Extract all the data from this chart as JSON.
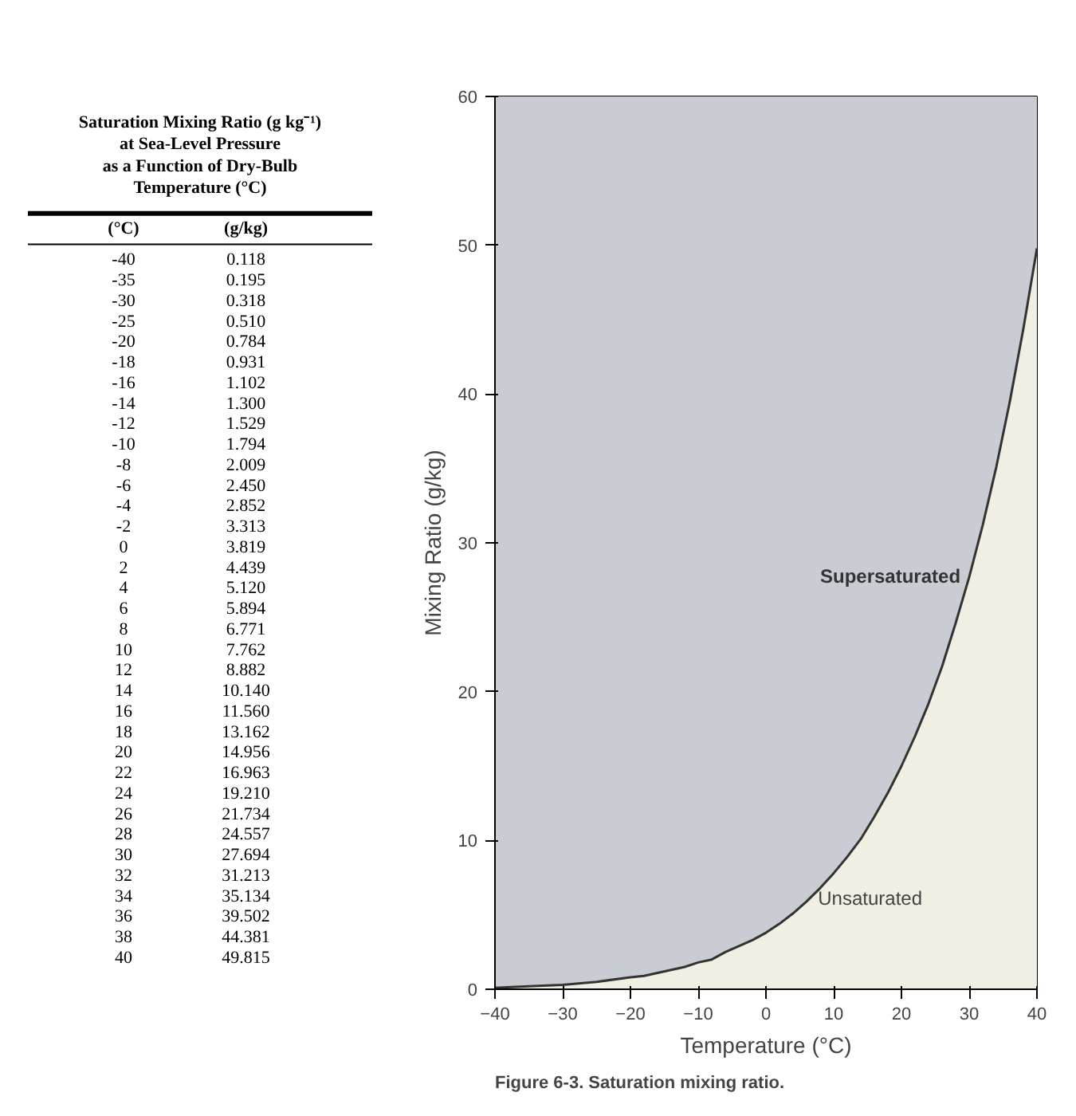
{
  "chart_data": [
    {
      "type": "heatmap",
      "title": "Saturation Mixing Ratio (g kg⁻¹)\nat Sea-Level Pressure\nas a Function of Dry-Bulb\nTemperature (°C)",
      "ylabel": "(°C)",
      "categories": [
        "(g/kg)"
      ],
      "y_categories": [
        "-40",
        "-35",
        "-30",
        "-25",
        "-20",
        "-18",
        "-16",
        "-14",
        "-12",
        "-10",
        "-8",
        "-6",
        "-4",
        "-2",
        "0",
        "2",
        "4",
        "6",
        "8",
        "10",
        "12",
        "14",
        "16",
        "18",
        "20",
        "22",
        "24",
        "26",
        "28",
        "30",
        "32",
        "34",
        "36",
        "38",
        "40"
      ],
      "cells": [
        [
          0.118
        ],
        [
          0.195
        ],
        [
          0.318
        ],
        [
          0.51
        ],
        [
          0.784
        ],
        [
          0.931
        ],
        [
          1.102
        ],
        [
          1.3
        ],
        [
          1.529
        ],
        [
          1.794
        ],
        [
          2.009
        ],
        [
          2.45
        ],
        [
          2.852
        ],
        [
          3.313
        ],
        [
          3.819
        ],
        [
          4.439
        ],
        [
          5.12
        ],
        [
          5.894
        ],
        [
          6.771
        ],
        [
          7.762
        ],
        [
          8.882
        ],
        [
          10.14
        ],
        [
          11.56
        ],
        [
          13.162
        ],
        [
          14.956
        ],
        [
          16.963
        ],
        [
          19.21
        ],
        [
          21.734
        ],
        [
          24.557
        ],
        [
          27.694
        ],
        [
          31.213
        ],
        [
          35.134
        ],
        [
          39.502
        ],
        [
          44.381
        ],
        [
          49.815
        ]
      ],
      "cell_labels": [
        [
          "0.118"
        ],
        [
          "0.195"
        ],
        [
          "0.318"
        ],
        [
          "0.510"
        ],
        [
          "0.784"
        ],
        [
          "0.931"
        ],
        [
          "1.102"
        ],
        [
          "1.300"
        ],
        [
          "1.529"
        ],
        [
          "1.794"
        ],
        [
          "2.009"
        ],
        [
          "2.450"
        ],
        [
          "2.852"
        ],
        [
          "3.313"
        ],
        [
          "3.819"
        ],
        [
          "4.439"
        ],
        [
          "5.120"
        ],
        [
          "5.894"
        ],
        [
          "6.771"
        ],
        [
          "7.762"
        ],
        [
          "8.882"
        ],
        [
          "10.140"
        ],
        [
          "11.560"
        ],
        [
          "13.162"
        ],
        [
          "14.956"
        ],
        [
          "16.963"
        ],
        [
          "19.210"
        ],
        [
          "21.734"
        ],
        [
          "24.557"
        ],
        [
          "27.694"
        ],
        [
          "31.213"
        ],
        [
          "35.134"
        ],
        [
          "39.502"
        ],
        [
          "44.381"
        ],
        [
          "49.815"
        ]
      ]
    },
    {
      "type": "area",
      "xlabel": "Temperature (°C)",
      "ylabel": "Mixing Ratio (g/kg)",
      "x": [
        -40,
        -35,
        -30,
        -25,
        -20,
        -18,
        -16,
        -14,
        -12,
        -10,
        -8,
        -6,
        -4,
        -2,
        0,
        2,
        4,
        6,
        8,
        10,
        12,
        14,
        16,
        18,
        20,
        22,
        24,
        26,
        28,
        30,
        32,
        34,
        36,
        38,
        40
      ],
      "series": [
        {
          "color": "#f1efe4",
          "values": [
            0.1,
            0.2,
            0.3,
            0.5,
            0.8,
            0.9,
            1.1,
            1.3,
            1.5,
            1.8,
            2.0,
            2.5,
            2.9,
            3.3,
            3.8,
            4.4,
            5.1,
            5.9,
            6.8,
            7.8,
            8.9,
            10.1,
            11.6,
            13.2,
            15.0,
            17.0,
            19.2,
            21.7,
            24.6,
            27.7,
            31.2,
            35.1,
            39.5,
            44.4,
            49.8
          ]
        }
      ],
      "bands": [
        {
          "axis": "y",
          "from": 0,
          "to": 60,
          "label": "Supersaturated",
          "color": "#c9ccd3"
        }
      ],
      "annotations": [
        "Unsaturated",
        "Figure 6-3. Saturation mixing ratio."
      ],
      "xlim": [
        -40,
        40
      ],
      "ylim": [
        0,
        60
      ],
      "xticks": [
        -40,
        -30,
        -20,
        -10,
        0,
        10,
        20,
        30,
        40
      ],
      "yticks": [
        0,
        10,
        20,
        30,
        40,
        50,
        60
      ]
    }
  ]
}
